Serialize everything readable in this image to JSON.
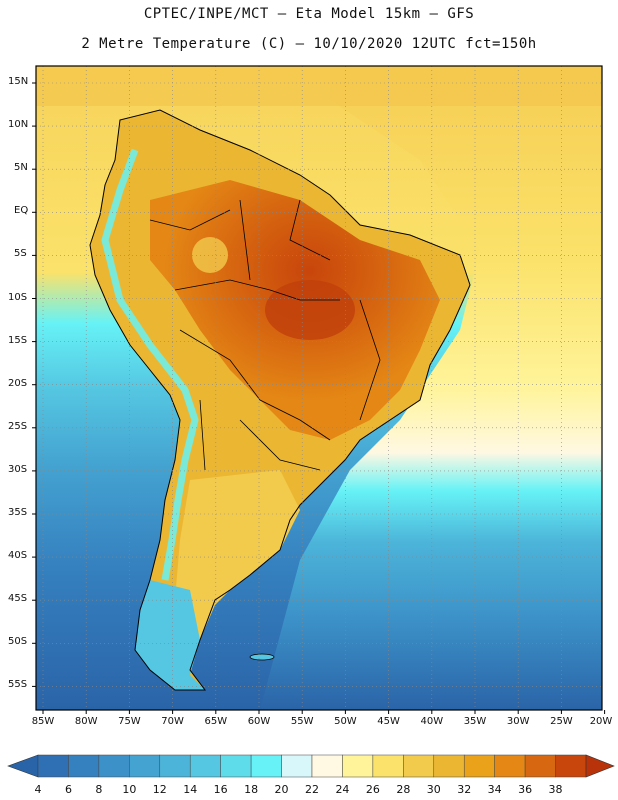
{
  "title_line1": "CPTEC/INPE/MCT —  Eta Model 15km — GFS",
  "title_line2": "2 Metre Temperature (C) — 10/10/2020 12UTC fct=150h",
  "lat_labels": [
    "15N",
    "10N",
    "5N",
    "EQ",
    "5S",
    "10S",
    "15S",
    "20S",
    "25S",
    "30S",
    "35S",
    "40S",
    "45S",
    "50S",
    "55S"
  ],
  "lon_labels": [
    "85W",
    "80W",
    "75W",
    "70W",
    "65W",
    "60W",
    "55W",
    "50W",
    "45W",
    "40W",
    "35W",
    "30W",
    "25W",
    "20W"
  ],
  "colorbar": {
    "labels": [
      "4",
      "6",
      "8",
      "10",
      "12",
      "14",
      "16",
      "18",
      "20",
      "22",
      "24",
      "26",
      "28",
      "30",
      "32",
      "34",
      "36",
      "38"
    ],
    "colors": [
      "#2f6fb3",
      "#3580bf",
      "#3c91c8",
      "#44a3d1",
      "#4cb4d9",
      "#55c7e2",
      "#5edcea",
      "#66f2f6",
      "#d8f7fb",
      "#fff8e2",
      "#fff49a",
      "#fbe26a",
      "#f3cb4c",
      "#ebb733",
      "#e9a21a",
      "#e48715",
      "#d76710",
      "#c8450b"
    ],
    "under_color": "#2a64a8",
    "over_color": "#b8320a"
  },
  "colors": {
    "ocean_south": "#2e6db0",
    "ocean_mid": "#4cb4d9",
    "ocean_north": "#fbe26a",
    "land_hot": "#c8450b"
  }
}
